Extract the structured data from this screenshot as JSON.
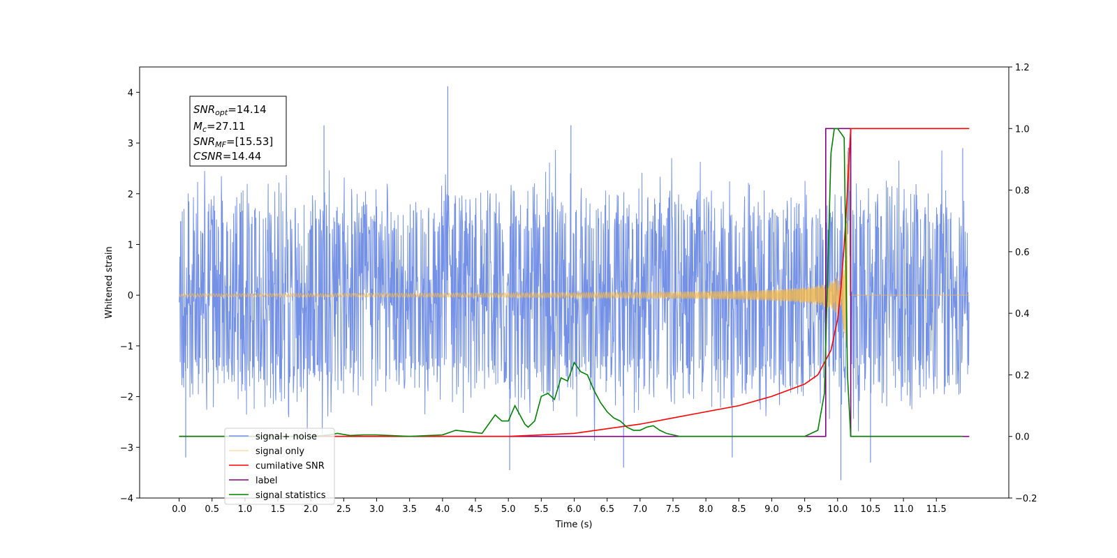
{
  "chart_data": {
    "type": "line",
    "xlabel": "Time (s)",
    "ylabel": "Whitened strain",
    "xlim": [
      -0.6,
      12.6
    ],
    "ylim": [
      -4,
      4.5
    ],
    "y2lim": [
      -0.2,
      1.2
    ],
    "x_ticks": [
      "0.0",
      "0.5",
      "1.0",
      "1.5",
      "2.0",
      "2.5",
      "3.0",
      "3.5",
      "4.0",
      "4.5",
      "5.0",
      "5.5",
      "6.0",
      "6.5",
      "7.0",
      "7.5",
      "8.0",
      "8.5",
      "9.0",
      "9.5",
      "10.0",
      "10.5",
      "11.0",
      "11.5"
    ],
    "y_ticks": [
      "4",
      "3",
      "2",
      "1",
      "0",
      "−1",
      "−2",
      "−3",
      "−4"
    ],
    "y2_ticks": [
      "1.2",
      "1.0",
      "0.8",
      "0.6",
      "0.4",
      "0.2",
      "0.0",
      "−0.2"
    ],
    "legend_position": "lower left",
    "annotation": {
      "snr_opt": {
        "label": "SNR",
        "sub": "opt",
        "value": "=14.14"
      },
      "mc": {
        "label": "M",
        "sub": "c",
        "value": "=27.11"
      },
      "snr_mf": {
        "label": "SNR",
        "sub": "MF",
        "value": "=[15.53]"
      },
      "csnr": {
        "label": "CSNR",
        "sub": "",
        "value": "=14.44"
      }
    },
    "noise_spikes": [
      {
        "x": 0.1,
        "y": -3.2
      },
      {
        "x": 2.2,
        "y": 3.35
      },
      {
        "x": 4.08,
        "y": 4.12
      },
      {
        "x": 5.02,
        "y": -3.45
      },
      {
        "x": 5.95,
        "y": 3.35
      },
      {
        "x": 6.75,
        "y": -3.4
      },
      {
        "x": 10.05,
        "y": -3.65
      },
      {
        "x": 10.5,
        "y": -3.3
      },
      {
        "x": 8.4,
        "y": -3.2
      },
      {
        "x": 11.9,
        "y": 2.9
      }
    ],
    "series": [
      {
        "name": "signal+ noise",
        "color": "#7491e6",
        "axis": "left",
        "x_range": [
          0.0,
          12.0
        ],
        "envelope_y": [
          -1.5,
          1.5
        ]
      },
      {
        "name": "signal only",
        "color": "#f5b94a",
        "axis": "left",
        "chirp": {
          "t_merge": 10.15,
          "peak_amplitude": 2.9,
          "end": 12.0
        }
      },
      {
        "name": "cumilative SNR",
        "color": "#ff0000",
        "axis": "right",
        "x": [
          0.0,
          5.0,
          6.0,
          7.0,
          7.5,
          8.0,
          8.5,
          9.0,
          9.5,
          9.7,
          9.9,
          10.0,
          10.05,
          10.1,
          10.15,
          10.2,
          11.0,
          12.0
        ],
        "y": [
          0.0,
          0.0,
          0.01,
          0.04,
          0.06,
          0.08,
          0.1,
          0.13,
          0.17,
          0.2,
          0.28,
          0.38,
          0.48,
          0.62,
          0.8,
          1.0,
          1.0,
          1.0
        ]
      },
      {
        "name": "label",
        "color": "#800080",
        "axis": "right",
        "x": [
          0.0,
          9.82,
          9.82,
          10.2,
          10.2,
          12.0
        ],
        "y": [
          0.0,
          0.0,
          1.0,
          1.0,
          0.0,
          0.0
        ]
      },
      {
        "name": "signal statistics",
        "color": "#008000",
        "axis": "right",
        "x": [
          0.0,
          2.0,
          2.3,
          2.4,
          2.6,
          2.8,
          3.0,
          3.5,
          4.0,
          4.2,
          4.4,
          4.6,
          4.7,
          4.8,
          4.9,
          5.0,
          5.1,
          5.15,
          5.25,
          5.3,
          5.4,
          5.5,
          5.6,
          5.7,
          5.8,
          5.9,
          6.0,
          6.1,
          6.2,
          6.3,
          6.4,
          6.5,
          6.6,
          6.7,
          6.8,
          6.9,
          7.0,
          7.1,
          7.2,
          7.3,
          7.4,
          7.5,
          7.6,
          8.0,
          8.5,
          9.0,
          9.5,
          9.7,
          9.8,
          9.9,
          9.95,
          10.0,
          10.1,
          10.15,
          10.2,
          11.0,
          11.9
        ],
        "y": [
          0.0,
          0.0,
          0.005,
          0.01,
          0.003,
          0.005,
          0.005,
          0.0,
          0.005,
          0.02,
          0.015,
          0.01,
          0.04,
          0.07,
          0.05,
          0.05,
          0.1,
          0.08,
          0.04,
          0.03,
          0.05,
          0.13,
          0.14,
          0.12,
          0.19,
          0.18,
          0.24,
          0.21,
          0.2,
          0.15,
          0.11,
          0.08,
          0.06,
          0.05,
          0.03,
          0.02,
          0.02,
          0.03,
          0.035,
          0.02,
          0.01,
          0.005,
          0.0,
          0.0,
          0.0,
          0.0,
          0.0,
          0.02,
          0.14,
          0.92,
          1.0,
          1.0,
          0.97,
          0.2,
          0.0,
          0.0,
          0.0
        ]
      }
    ]
  }
}
